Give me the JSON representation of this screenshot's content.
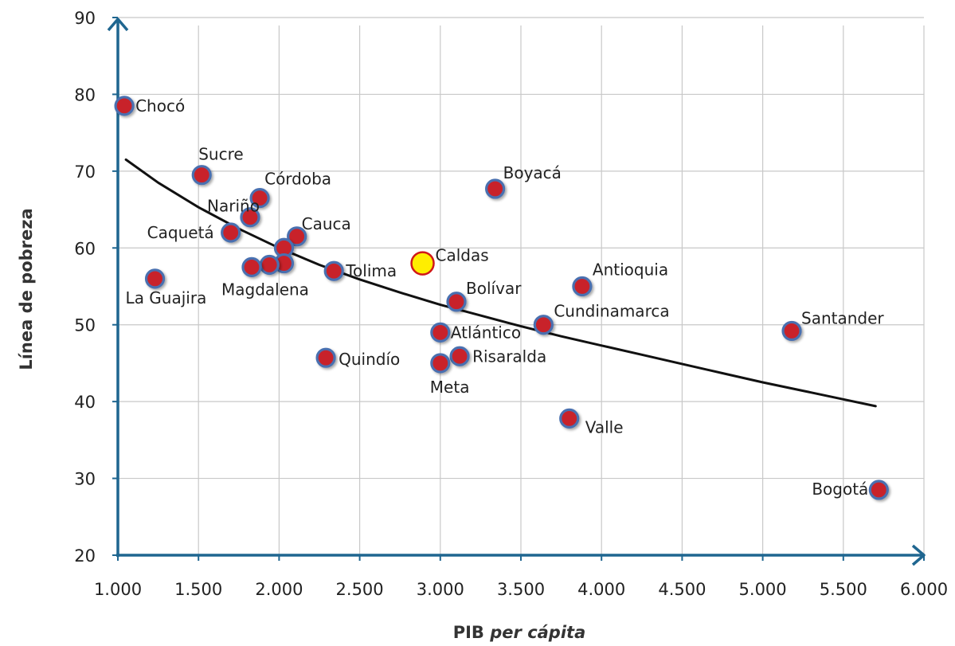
{
  "chart_data": {
    "type": "scatter",
    "title": "",
    "xlabel_prefix": "PIB",
    "xlabel_italic": "per cápita",
    "ylabel": "Línea de pobreza",
    "xlim": [
      1000,
      6000
    ],
    "ylim": [
      20,
      90
    ],
    "x_ticks": [
      1000,
      1500,
      2000,
      2500,
      3000,
      3500,
      4000,
      4500,
      5000,
      5500,
      6000
    ],
    "x_tick_labels": [
      "1.000",
      "1.500",
      "2.000",
      "2.500",
      "3.000",
      "3.500",
      "4.000",
      "4.500",
      "5.000",
      "5.500",
      "6.000"
    ],
    "y_ticks": [
      20,
      30,
      40,
      50,
      60,
      70,
      80,
      90
    ],
    "y_tick_labels": [
      "20",
      "30",
      "40",
      "50",
      "60",
      "70",
      "80",
      "90"
    ],
    "grid": true,
    "colors": {
      "axis": "#1f6690",
      "grid": "#c8c8c8",
      "point_fill": "#c8202a",
      "point_stroke": "#4a6fb0",
      "highlight_fill": "#ffee00",
      "highlight_stroke": "#d01818",
      "trend": "#111111"
    },
    "points": [
      {
        "label": "Chocó",
        "x": 1040,
        "y": 78.5
      },
      {
        "label": "Sucre",
        "x": 1520,
        "y": 69.5
      },
      {
        "label": "Córdoba",
        "x": 1880,
        "y": 66.5
      },
      {
        "label": "Nariño",
        "x": 1820,
        "y": 64
      },
      {
        "label": "Caquetá",
        "x": 1700,
        "y": 62
      },
      {
        "label": "Cauca",
        "x": 2110,
        "y": 61.5
      },
      {
        "label": "",
        "x": 2030,
        "y": 60
      },
      {
        "label": "",
        "x": 2030,
        "y": 58
      },
      {
        "label": "",
        "x": 1940,
        "y": 57.8
      },
      {
        "label": "Magdalena",
        "x": 1830,
        "y": 57.5
      },
      {
        "label": "Tolima",
        "x": 2340,
        "y": 57
      },
      {
        "label": "La Guajira",
        "x": 1230,
        "y": 56
      },
      {
        "label": "Caldas",
        "x": 2890,
        "y": 58,
        "highlight": true
      },
      {
        "label": "Boyacá",
        "x": 3340,
        "y": 67.7
      },
      {
        "label": "Antioquia",
        "x": 3880,
        "y": 55
      },
      {
        "label": "Bolívar",
        "x": 3100,
        "y": 53
      },
      {
        "label": "Cundinamarca",
        "x": 3640,
        "y": 50
      },
      {
        "label": "Atlántico",
        "x": 3000,
        "y": 49
      },
      {
        "label": "Santander",
        "x": 5180,
        "y": 49.2
      },
      {
        "label": "Quindío",
        "x": 2290,
        "y": 45.7
      },
      {
        "label": "Risaralda",
        "x": 3120,
        "y": 45.9
      },
      {
        "label": "Meta",
        "x": 3000,
        "y": 45
      },
      {
        "label": "Valle",
        "x": 3800,
        "y": 37.8
      },
      {
        "label": "Bogotá",
        "x": 5720,
        "y": 28.5
      }
    ],
    "trend_line": {
      "x": [
        1050,
        1250,
        1500,
        1750,
        2000,
        2250,
        2500,
        2750,
        3000,
        3250,
        3500,
        3750,
        4000,
        4250,
        4500,
        4750,
        5000,
        5250,
        5500,
        5700
      ],
      "y": [
        71.5,
        68.5,
        65.3,
        62.5,
        60.0,
        57.8,
        55.9,
        54.2,
        52.6,
        51.2,
        49.8,
        48.5,
        47.3,
        46.1,
        44.9,
        43.7,
        42.5,
        41.4,
        40.3,
        39.4
      ]
    }
  }
}
